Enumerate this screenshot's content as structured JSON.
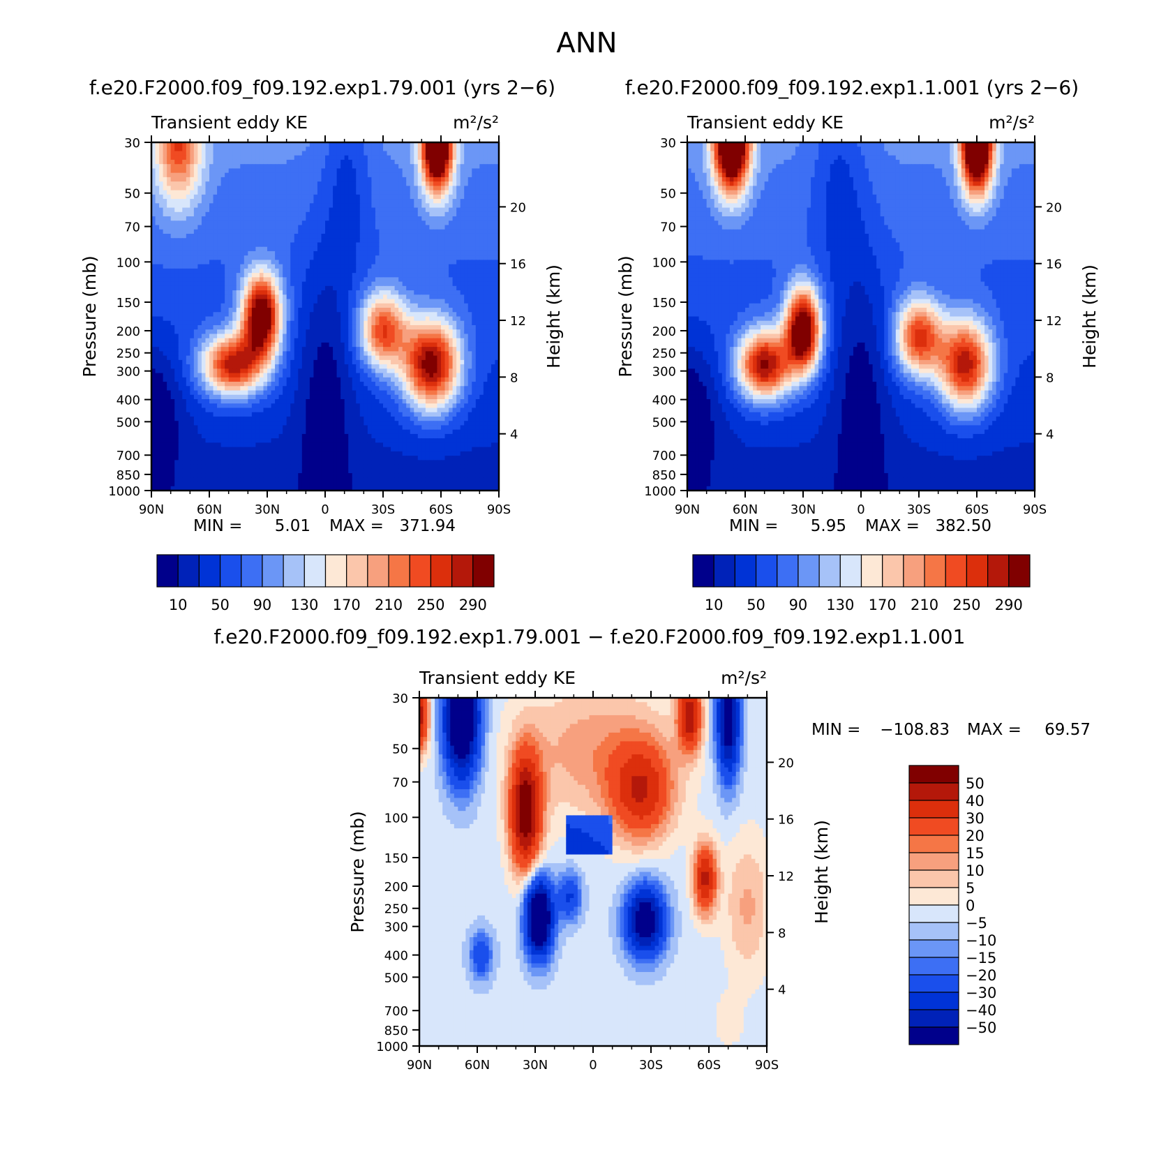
{
  "figure": {
    "title": "ANN",
    "top_left_title": "f.e20.F2000.f09_f09.192.exp1.79.001 (yrs 2−6)",
    "top_right_title": "f.e20.F2000.f09_f09.192.exp1.1.001 (yrs 2−6)",
    "bottom_title": "f.e20.F2000.f09_f09.192.exp1.79.001 − f.e20.F2000.f09_f09.192.exp1.1.001"
  },
  "colors": {
    "abs_levels": [
      "#00008b",
      "#0022b8",
      "#0033d6",
      "#1a4fec",
      "#3d6ff4",
      "#6b96f6",
      "#a6c2f8",
      "#d8e6fb",
      "#fde8d6",
      "#fbc6ab",
      "#f7a07e",
      "#f57646",
      "#f04b22",
      "#dc2f0c",
      "#b4180a",
      "#800000"
    ],
    "diff_levels": [
      "#00008b",
      "#0022b8",
      "#0033d6",
      "#1a4fec",
      "#3d6ff4",
      "#6b96f6",
      "#a6c2f8",
      "#d8e6fb",
      "#fde8d6",
      "#fbc6ab",
      "#f7a07e",
      "#f57646",
      "#f04b22",
      "#dc2f0c",
      "#b4180a",
      "#800000"
    ]
  },
  "chart_data": [
    {
      "type": "heatmap",
      "panel": "top-left",
      "left_title": "Transient eddy KE",
      "units": "m²/s²",
      "ylabel": "Pressure (mb)",
      "ylabel_right": "Height (km)",
      "x_ticks": [
        "90N",
        "60N",
        "30N",
        "0",
        "30S",
        "60S",
        "90S"
      ],
      "y_ticks": [
        "30",
        "50",
        "70",
        "100",
        "150",
        "200",
        "250",
        "300",
        "400",
        "500",
        "700",
        "850",
        "1000"
      ],
      "y_ticks_right": [
        "20",
        "16",
        "12",
        "8",
        "4"
      ],
      "min_label": "MIN =",
      "min_value": "5.01",
      "max_label": "MAX =",
      "max_value": "371.94",
      "colorbar_labels": [
        "10",
        "50",
        "90",
        "130",
        "170",
        "210",
        "250",
        "290"
      ],
      "colorbar_levels": [
        10,
        30,
        50,
        70,
        90,
        110,
        130,
        150,
        170,
        190,
        210,
        230,
        250,
        270,
        290
      ]
    },
    {
      "type": "heatmap",
      "panel": "top-right",
      "left_title": "Transient eddy KE",
      "units": "m²/s²",
      "ylabel": "Pressure (mb)",
      "ylabel_right": "Height (km)",
      "x_ticks": [
        "90N",
        "60N",
        "30N",
        "0",
        "30S",
        "60S",
        "90S"
      ],
      "y_ticks": [
        "30",
        "50",
        "70",
        "100",
        "150",
        "200",
        "250",
        "300",
        "400",
        "500",
        "700",
        "850",
        "1000"
      ],
      "y_ticks_right": [
        "20",
        "16",
        "12",
        "8",
        "4"
      ],
      "min_label": "MIN =",
      "min_value": "5.95",
      "max_label": "MAX =",
      "max_value": "382.50",
      "colorbar_labels": [
        "10",
        "50",
        "90",
        "130",
        "170",
        "210",
        "250",
        "290"
      ],
      "colorbar_levels": [
        10,
        30,
        50,
        70,
        90,
        110,
        130,
        150,
        170,
        190,
        210,
        230,
        250,
        270,
        290
      ]
    },
    {
      "type": "heatmap",
      "panel": "bottom-difference",
      "left_title": "Transient eddy KE",
      "units": "m²/s²",
      "ylabel": "Pressure (mb)",
      "ylabel_right": "Height (km)",
      "x_ticks": [
        "90N",
        "60N",
        "30N",
        "0",
        "30S",
        "60S",
        "90S"
      ],
      "y_ticks": [
        "30",
        "50",
        "70",
        "100",
        "150",
        "200",
        "250",
        "300",
        "400",
        "500",
        "700",
        "850",
        "1000"
      ],
      "y_ticks_right": [
        "20",
        "16",
        "12",
        "8",
        "4"
      ],
      "min_label": "MIN =",
      "min_value": "−108.83",
      "max_label": "MAX =",
      "max_value": "69.57",
      "colorbar_labels": [
        "50",
        "40",
        "30",
        "20",
        "15",
        "10",
        "5",
        "0",
        "−5",
        "−10",
        "−15",
        "−20",
        "−30",
        "−40",
        "−50"
      ],
      "colorbar_levels": [
        -50,
        -40,
        -30,
        -20,
        -15,
        -10,
        -5,
        0,
        5,
        10,
        15,
        20,
        30,
        40,
        50
      ]
    }
  ]
}
